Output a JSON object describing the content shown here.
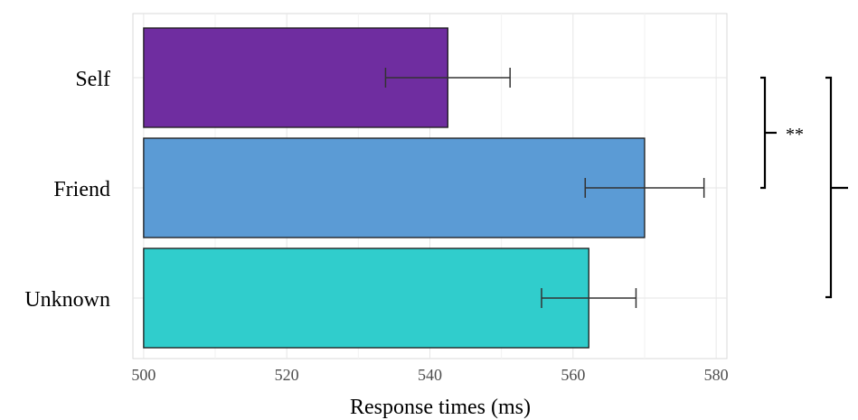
{
  "chart_data": {
    "type": "bar",
    "orientation": "horizontal",
    "categories": [
      "Self",
      "Friend",
      "Unknown"
    ],
    "values": [
      542.5,
      570.0,
      562.2
    ],
    "error": [
      8.7,
      8.3,
      6.6
    ],
    "colors": [
      "#6f2da0",
      "#5b9bd5",
      "#30cdcc"
    ],
    "xlabel": "Response times (ms)",
    "ylabel": "",
    "xlim": [
      498.5,
      581.5
    ],
    "xticks": [
      500,
      520,
      540,
      560,
      580
    ],
    "grid": true,
    "significance": [
      {
        "from": "Self",
        "to": "Friend",
        "label": "**"
      },
      {
        "from": "Self",
        "to": "Unknown",
        "label": ""
      }
    ]
  }
}
